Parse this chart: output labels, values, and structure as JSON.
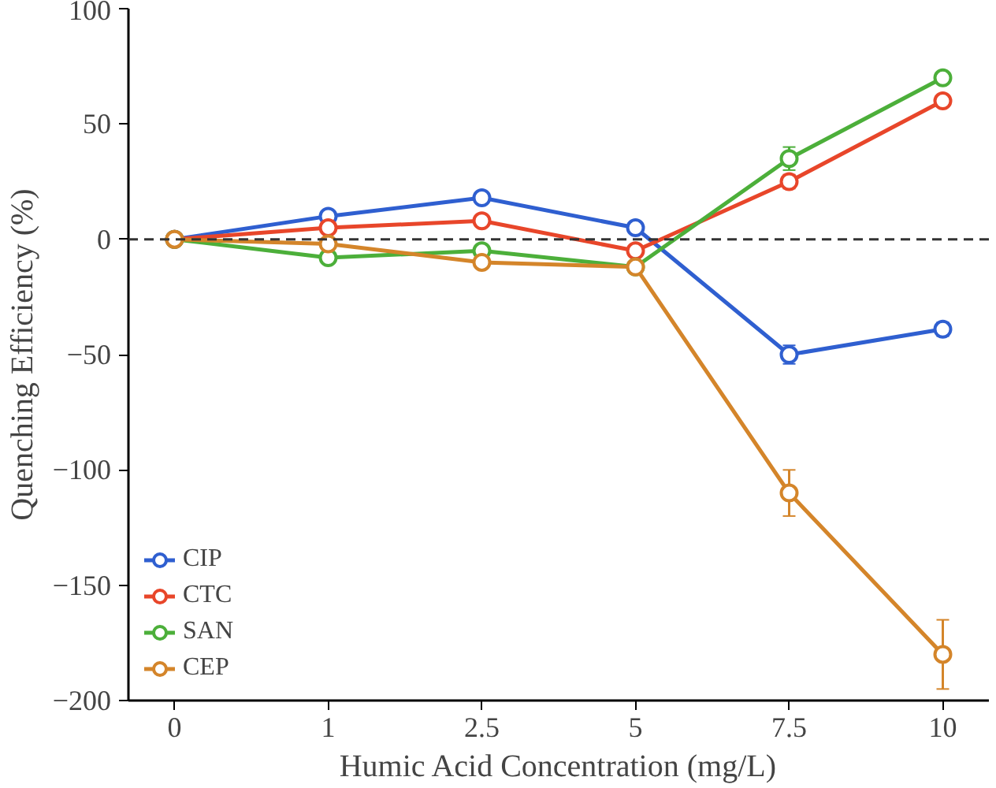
{
  "chart_data": {
    "type": "line",
    "xlabel": "Humic Acid Concentration (mg/L)",
    "ylabel": "Quenching Efficiency (%)",
    "categories": [
      "0",
      "1",
      "2.5",
      "5",
      "7.5",
      "10"
    ],
    "series": [
      {
        "name": "CIP",
        "color": "#2f5fd0",
        "values": [
          0,
          10,
          18,
          5,
          -50,
          -39
        ],
        "errors": [
          null,
          2,
          2,
          2,
          4,
          3
        ]
      },
      {
        "name": "CTC",
        "color": "#e8462a",
        "values": [
          0,
          5,
          8,
          -5,
          25,
          60
        ],
        "errors": [
          null,
          2,
          2,
          2,
          3,
          2
        ]
      },
      {
        "name": "SAN",
        "color": "#4caf3a",
        "values": [
          0,
          -8,
          -5,
          -12,
          35,
          70
        ],
        "errors": [
          null,
          2,
          2,
          null,
          5,
          2
        ]
      },
      {
        "name": "CEP",
        "color": "#d4852a",
        "values": [
          0,
          -2,
          -10,
          -12,
          -110,
          -180
        ],
        "errors": [
          null,
          2,
          2,
          null,
          10,
          15
        ]
      }
    ],
    "ylim": [
      -200,
      100
    ],
    "yticks": [
      -200,
      -150,
      -100,
      -50,
      0,
      50,
      100
    ],
    "ref_lines": [
      {
        "axis": "y",
        "value": 0,
        "color": "#333333",
        "line_style": "dashed"
      }
    ],
    "grid": false,
    "legend": "bottom left",
    "marker": "circle",
    "line_style": "solid"
  }
}
